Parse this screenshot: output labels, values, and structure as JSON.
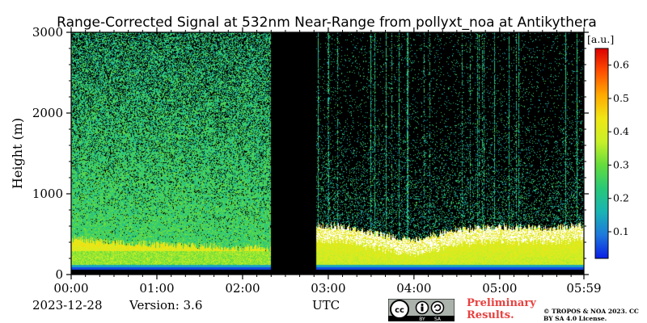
{
  "chart_data": {
    "type": "heatmap",
    "title": "Range-Corrected Signal at 532nm Near-Range from pollyxt_noa at Antikythera",
    "xlabel": "UTC",
    "ylabel": "Height (m)",
    "x_ticks": [
      "00:00",
      "01:00",
      "02:00",
      "03:00",
      "04:00",
      "05:00",
      "05:59"
    ],
    "x_tick_hours": [
      0,
      1,
      2,
      3,
      4,
      5,
      5.983
    ],
    "xlim_hours": [
      0,
      5.983
    ],
    "y_ticks": [
      0,
      1000,
      2000,
      3000
    ],
    "ylim": [
      0,
      3000
    ],
    "colorbar": {
      "unit_label": "[a.u.]",
      "ticks": [
        0.1,
        0.2,
        0.3,
        0.4,
        0.5,
        0.6
      ],
      "range": [
        0.02,
        0.65
      ],
      "colors": [
        "#0a1ee6",
        "#1e78dc",
        "#18b4b4",
        "#28c878",
        "#64dc3c",
        "#c8f028",
        "#f0e614",
        "#ffaa00",
        "#ff5000",
        "#dc0000"
      ]
    },
    "data_gap_hours": [
      2.33,
      2.85
    ],
    "boundary_layer_top_m": {
      "hours": [
        0.0,
        0.5,
        1.0,
        1.5,
        2.0,
        2.33,
        2.85,
        3.2,
        3.6,
        4.0,
        4.5,
        5.0,
        5.5,
        5.983
      ],
      "heights": [
        450,
        400,
        380,
        360,
        330,
        330,
        620,
        600,
        500,
        440,
        560,
        600,
        580,
        620
      ]
    }
  },
  "footer": {
    "date": "2023-12-28",
    "version": "Version: 3.6",
    "time_label": "UTC",
    "preliminary": "Preliminary Results.",
    "copyright": "© TROPOS & NOA 2023. CC BY SA 4.0 License.",
    "badge": {
      "cc": "cc",
      "by": "BY",
      "sa": "SA"
    }
  }
}
